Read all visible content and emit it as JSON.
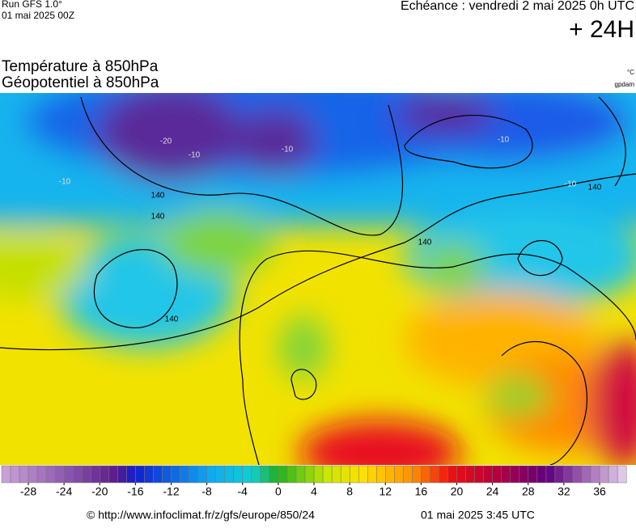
{
  "header": {
    "run": "Run GFS 1.0°",
    "date": "01 mai 2025 00Z",
    "echeance": "Echéance : vendredi 2 mai 2025 0h UTC",
    "lead": "+ 24H"
  },
  "map": {
    "title_temp": "Température à 850hPa",
    "title_geo": "Géopotentiel à 850hPa",
    "unit_temp": "°C",
    "unit_geo": "gpdam",
    "contour_labels": [
      "-20",
      "-10",
      "-10",
      "-10",
      "-10",
      "-10",
      "140",
      "140",
      "140",
      "140",
      "140"
    ]
  },
  "colorbar": {
    "ticks": [
      -28,
      -24,
      -20,
      -16,
      -12,
      -8,
      -4,
      0,
      4,
      8,
      12,
      16,
      20,
      24,
      28,
      32,
      36
    ]
  },
  "footer": {
    "url": "© http://www.infoclimat.fr/z/gfs/europe/850/24",
    "timestamp": "01 mai 2025  3:45 UTC"
  }
}
